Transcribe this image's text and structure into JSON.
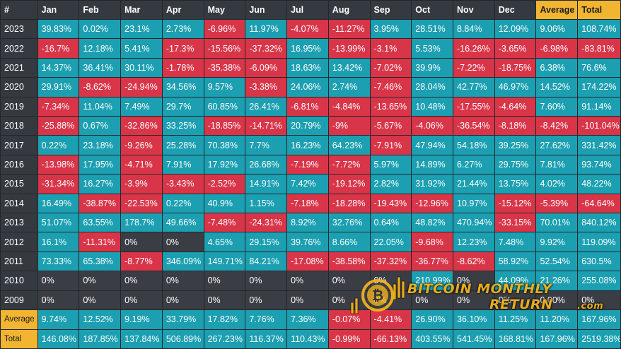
{
  "chart_data": {
    "type": "heatmap",
    "title": "",
    "corner_label": "#",
    "columns": [
      "Jan",
      "Feb",
      "Mar",
      "Apr",
      "May",
      "Jun",
      "Jul",
      "Aug",
      "Sep",
      "Oct",
      "Nov",
      "Dec",
      "Average",
      "Total"
    ],
    "rows": [
      {
        "label": "2023",
        "values": [
          "39.83%",
          "0.02%",
          "23.1%",
          "2.73%",
          "-6.96%",
          "11.97%",
          "-4.07%",
          "-11.27%",
          "3.95%",
          "28.51%",
          "8.84%",
          "12.09%",
          "9.06%",
          "108.74%"
        ]
      },
      {
        "label": "2022",
        "values": [
          "-16.7%",
          "12.18%",
          "5.41%",
          "-17.3%",
          "-15.56%",
          "-37.32%",
          "16.95%",
          "-13.99%",
          "-3.1%",
          "5.53%",
          "-16.26%",
          "-3.65%",
          "-6.98%",
          "-83.81%"
        ]
      },
      {
        "label": "2021",
        "values": [
          "14.37%",
          "36.41%",
          "30.11%",
          "-1.78%",
          "-35.38%",
          "-6.09%",
          "18.63%",
          "13.42%",
          "-7.02%",
          "39.9%",
          "-7.22%",
          "-18.75%",
          "6.38%",
          "76.6%"
        ]
      },
      {
        "label": "2020",
        "values": [
          "29.91%",
          "-8.62%",
          "-24.94%",
          "34.56%",
          "9.57%",
          "-3.38%",
          "24.06%",
          "2.74%",
          "-7.46%",
          "28.04%",
          "42.77%",
          "46.97%",
          "14.52%",
          "174.22%"
        ]
      },
      {
        "label": "2019",
        "values": [
          "-7.34%",
          "11.04%",
          "7.49%",
          "29.7%",
          "60.85%",
          "26.41%",
          "-6.81%",
          "-4.84%",
          "-13.65%",
          "10.48%",
          "-17.55%",
          "-4.64%",
          "7.60%",
          "91.14%"
        ]
      },
      {
        "label": "2018",
        "values": [
          "-25.88%",
          "0.67%",
          "-32.86%",
          "33.25%",
          "-18.85%",
          "-14.71%",
          "20.79%",
          "-9%",
          "-5.67%",
          "-4.06%",
          "-36.54%",
          "-8.18%",
          "-8.42%",
          "-101.04%"
        ]
      },
      {
        "label": "2017",
        "values": [
          "0.22%",
          "23.18%",
          "-9.26%",
          "25.28%",
          "70.38%",
          "7.7%",
          "16.23%",
          "64.23%",
          "-7.91%",
          "47.94%",
          "54.18%",
          "39.25%",
          "27.62%",
          "331.42%"
        ]
      },
      {
        "label": "2016",
        "values": [
          "-13.98%",
          "17.95%",
          "-4.71%",
          "7.91%",
          "17.92%",
          "26.68%",
          "-7.19%",
          "-7.72%",
          "5.97%",
          "14.89%",
          "6.27%",
          "29.75%",
          "7.81%",
          "93.74%"
        ]
      },
      {
        "label": "2015",
        "values": [
          "-31.34%",
          "16.27%",
          "-3.9%",
          "-3.43%",
          "-2.52%",
          "14.91%",
          "7.42%",
          "-19.12%",
          "2.82%",
          "31.92%",
          "21.44%",
          "13.75%",
          "4.02%",
          "48.22%"
        ]
      },
      {
        "label": "2014",
        "values": [
          "16.49%",
          "-38.87%",
          "-22.53%",
          "0.22%",
          "40.9%",
          "1.15%",
          "-7.18%",
          "-18.28%",
          "-19.43%",
          "-12.96%",
          "10.97%",
          "-15.12%",
          "-5.39%",
          "-64.64%"
        ]
      },
      {
        "label": "2013",
        "values": [
          "51.07%",
          "63.55%",
          "178.7%",
          "49.66%",
          "-7.48%",
          "-24.31%",
          "8.92%",
          "32.76%",
          "0.64%",
          "48.82%",
          "470.94%",
          "-33.15%",
          "70.01%",
          "840.12%"
        ]
      },
      {
        "label": "2012",
        "values": [
          "16.1%",
          "-11.31%",
          "0%",
          "0%",
          "4.65%",
          "29.15%",
          "39.76%",
          "8.66%",
          "22.05%",
          "-9.68%",
          "12.23%",
          "7.48%",
          "9.92%",
          "119.09%"
        ]
      },
      {
        "label": "2011",
        "values": [
          "73.33%",
          "65.38%",
          "-8.77%",
          "346.09%",
          "149.71%",
          "84.21%",
          "-17.08%",
          "-38.58%",
          "-37.32%",
          "-36.77%",
          "-8.62%",
          "58.92%",
          "52.54%",
          "630.5%"
        ]
      },
      {
        "label": "2010",
        "values": [
          "0%",
          "0%",
          "0%",
          "0%",
          "0%",
          "0%",
          "0%",
          "0%",
          "0%",
          "210.99%",
          "0%",
          "44.09%",
          "21.26%",
          "255.08%"
        ]
      },
      {
        "label": "2009",
        "values": [
          "0%",
          "0%",
          "0%",
          "0%",
          "0%",
          "0%",
          "0%",
          "0%",
          "0%",
          "0%",
          "0%",
          "0%",
          "0.00%",
          "0%"
        ]
      },
      {
        "label": "Average",
        "values": [
          "9.74%",
          "12.52%",
          "9.19%",
          "33.79%",
          "17.82%",
          "7.76%",
          "7.36%",
          "-0.07%",
          "-4.41%",
          "26.90%",
          "36.10%",
          "11.25%",
          "11.20%",
          "167.96%"
        ]
      },
      {
        "label": "Total",
        "values": [
          "146.08%",
          "187.85%",
          "137.84%",
          "506.89%",
          "267.23%",
          "116.37%",
          "110.43%",
          "-0.99%",
          "-66.13%",
          "403.55%",
          "541.45%",
          "168.81%",
          "167.96%",
          "2519.38%"
        ]
      }
    ],
    "colors": {
      "positive": "#1b9fb1",
      "negative": "#d93549",
      "zero": "#3a3e44",
      "header": "#353a40",
      "highlight": "#f2b531"
    }
  },
  "watermark": {
    "line1": "BITCOIN MONTHLY",
    "line2": "RETURN",
    "suffix": ".com",
    "icon": "bitcoin-coin-icon"
  }
}
